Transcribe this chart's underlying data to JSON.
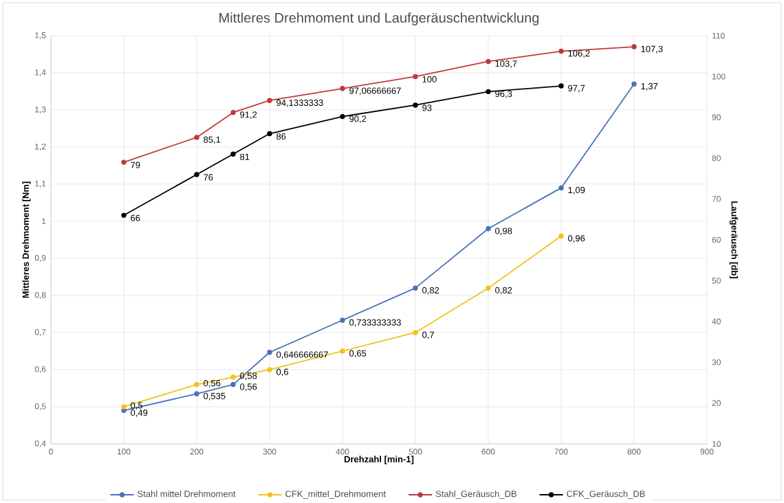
{
  "chart_data": {
    "type": "line",
    "title": "Mittleres Drehmoment und Laufgeräuschentwicklung",
    "xlabel": "Drehzahl [min-1]",
    "ylabel": "Mittleres Drehmoment [Nm]",
    "y2label": "Laufgeräusch [db]",
    "xlim": [
      0,
      900
    ],
    "xticks": [
      0,
      100,
      200,
      300,
      400,
      500,
      600,
      700,
      800,
      900
    ],
    "ylim": [
      0.4,
      1.5
    ],
    "yticks": [
      {
        "value": 0.4,
        "label": "0,4"
      },
      {
        "value": 0.5,
        "label": "0,5"
      },
      {
        "value": 0.6,
        "label": "0,6"
      },
      {
        "value": 0.7,
        "label": "0,7"
      },
      {
        "value": 0.8,
        "label": "0,8"
      },
      {
        "value": 0.9,
        "label": "0,9"
      },
      1,
      {
        "value": 1.1,
        "label": "1,1"
      },
      {
        "value": 1.2,
        "label": "1,2"
      },
      {
        "value": 1.3,
        "label": "1,3"
      },
      {
        "value": 1.4,
        "label": "1,4"
      },
      {
        "value": 1.5,
        "label": "1,5"
      }
    ],
    "y2lim": [
      10,
      110
    ],
    "y2ticks": [
      10,
      20,
      30,
      40,
      50,
      60,
      70,
      80,
      90,
      100,
      110
    ],
    "grid": true,
    "legend": "bottom",
    "marker": "circle",
    "line_style": "solid",
    "series": [
      {
        "name": "Stahl mittel Drehmoment",
        "color": "#4a72b8",
        "x": [
          100,
          200,
          250,
          300,
          400,
          500,
          600,
          700,
          800
        ],
        "values": [
          0.49,
          0.535,
          0.56,
          0.646666667,
          0.733333333,
          0.82,
          0.98,
          1.09,
          1.37
        ],
        "value_labels": [
          "0,49",
          "0,535",
          "0,56",
          "0,646666667",
          "0,733333333",
          "0,82",
          "0,98",
          "1,09",
          "1,37"
        ]
      },
      {
        "name": "CFK_mittel_Drehmoment",
        "color": "#f2c318",
        "x": [
          100,
          200,
          250,
          300,
          400,
          500,
          600,
          700
        ],
        "values": [
          0.5,
          0.56,
          0.58,
          0.6,
          0.65,
          0.7,
          0.82,
          0.96
        ],
        "value_labels": [
          "0,5",
          "0,56",
          "0,58",
          "0,6",
          "0,65",
          "0,7",
          "0,82",
          "0,96"
        ]
      },
      {
        "name": "Stahl_Geräusch_DB",
        "color": "#c0393b",
        "axis": "y2",
        "x": [
          100,
          200,
          250,
          300,
          400,
          500,
          600,
          700,
          800
        ],
        "values": [
          79,
          85.1,
          91.2,
          94.1333333,
          97.06666667,
          100,
          103.7,
          106.2,
          107.3
        ],
        "value_labels": [
          "79",
          "85,1",
          "91,2",
          "94,1333333",
          "97,06666667",
          "100",
          "103,7",
          "106,2",
          "107,3"
        ]
      },
      {
        "name": "CFK_Geräusch_DB",
        "color": "#000000",
        "axis": "y2",
        "x": [
          100,
          200,
          250,
          300,
          400,
          500,
          600,
          700
        ],
        "values": [
          66,
          76,
          81,
          86,
          90.2,
          93,
          96.3,
          97.7
        ],
        "value_labels": [
          "66",
          "76",
          "81",
          "86",
          "90,2",
          "93",
          "96,3",
          "97,7"
        ]
      }
    ]
  }
}
